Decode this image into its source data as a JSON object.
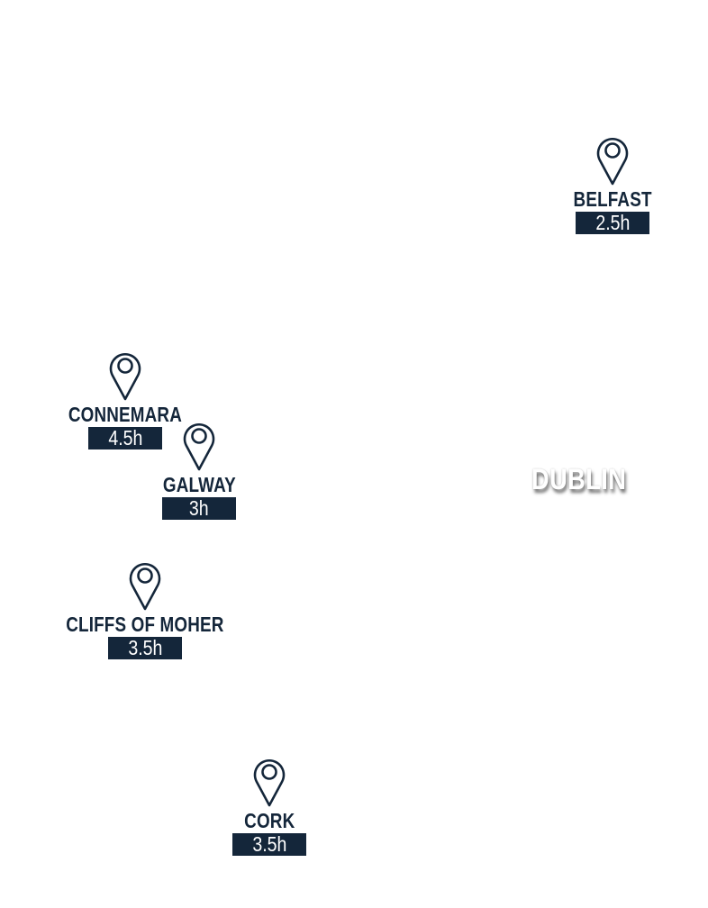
{
  "map": {
    "accent_color": "#14263a",
    "markers": [
      {
        "name": "BELFAST",
        "duration": "2.5h",
        "icon": "map-pin-icon"
      },
      {
        "name": "CONNEMARA",
        "duration": "4.5h",
        "icon": "map-pin-icon"
      },
      {
        "name": "GALWAY",
        "duration": "3h",
        "icon": "map-pin-icon"
      },
      {
        "name": "CLIFFS OF MOHER",
        "duration": "3.5h",
        "icon": "map-pin-icon"
      },
      {
        "name": "CORK",
        "duration": "3.5h",
        "icon": "map-pin-icon"
      }
    ],
    "origin_label": "DUBLIN"
  }
}
